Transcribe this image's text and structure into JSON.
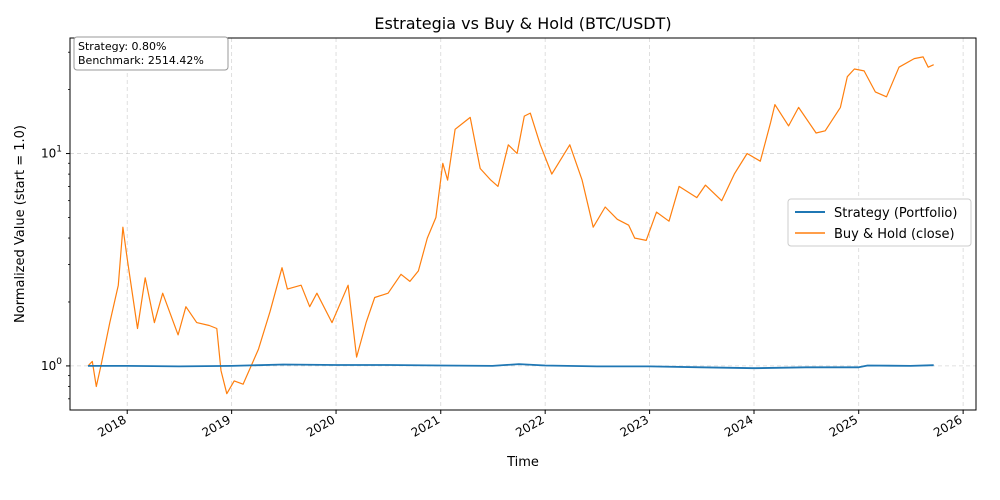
{
  "chart_data": {
    "type": "line",
    "title": "Estrategia vs Buy & Hold (BTC/USDT)",
    "xlabel": "Time",
    "ylabel": "Normalized Value (start = 1.0)",
    "y_scale": "log",
    "ylim": [
      0.62,
      35
    ],
    "xlim": [
      "2017-06-15",
      "2026-02-15"
    ],
    "x_ticks": [
      "2018",
      "2019",
      "2020",
      "2021",
      "2022",
      "2023",
      "2024",
      "2025",
      "2026"
    ],
    "y_ticks": [
      {
        "value": 1,
        "base": "10",
        "exp": "0"
      },
      {
        "value": 10,
        "base": "10",
        "exp": "1"
      }
    ],
    "grid": true,
    "legend_position": "center-right",
    "annotation": {
      "line1": "Strategy:  0.80%",
      "line2": "Benchmark:  2514.42%"
    },
    "series": [
      {
        "name": "Strategy (Portfolio)",
        "color": "#1f77b4",
        "points": [
          [
            "2017-08-17",
            1.0
          ],
          [
            "2018-01-01",
            1.0
          ],
          [
            "2018-07-01",
            0.995
          ],
          [
            "2019-01-01",
            1.0
          ],
          [
            "2019-07-01",
            1.015
          ],
          [
            "2020-01-01",
            1.01
          ],
          [
            "2020-07-01",
            1.01
          ],
          [
            "2021-01-01",
            1.005
          ],
          [
            "2021-07-01",
            1.0
          ],
          [
            "2021-10-01",
            1.02
          ],
          [
            "2022-01-01",
            1.005
          ],
          [
            "2022-07-01",
            0.995
          ],
          [
            "2023-01-01",
            0.995
          ],
          [
            "2023-07-01",
            0.985
          ],
          [
            "2024-01-01",
            0.975
          ],
          [
            "2024-07-01",
            0.985
          ],
          [
            "2025-01-01",
            0.985
          ],
          [
            "2025-02-01",
            1.005
          ],
          [
            "2025-07-01",
            1.0
          ],
          [
            "2025-09-20",
            1.008
          ]
        ]
      },
      {
        "name": "Buy & Hold (close)",
        "color": "#ff7f0e",
        "points": [
          [
            "2017-08-17",
            1.0
          ],
          [
            "2017-09-01",
            1.05
          ],
          [
            "2017-09-15",
            0.8
          ],
          [
            "2017-10-01",
            1.0
          ],
          [
            "2017-11-01",
            1.6
          ],
          [
            "2017-12-01",
            2.4
          ],
          [
            "2017-12-17",
            4.5
          ],
          [
            "2018-01-01",
            3.2
          ],
          [
            "2018-02-06",
            1.5
          ],
          [
            "2018-03-05",
            2.6
          ],
          [
            "2018-04-06",
            1.6
          ],
          [
            "2018-05-05",
            2.2
          ],
          [
            "2018-06-28",
            1.4
          ],
          [
            "2018-07-25",
            1.9
          ],
          [
            "2018-09-01",
            1.6
          ],
          [
            "2018-10-15",
            1.55
          ],
          [
            "2018-11-10",
            1.5
          ],
          [
            "2018-11-25",
            0.95
          ],
          [
            "2018-12-15",
            0.74
          ],
          [
            "2019-01-10",
            0.85
          ],
          [
            "2019-02-10",
            0.82
          ],
          [
            "2019-04-05",
            1.2
          ],
          [
            "2019-05-15",
            1.8
          ],
          [
            "2019-06-26",
            2.9
          ],
          [
            "2019-07-15",
            2.3
          ],
          [
            "2019-09-01",
            2.4
          ],
          [
            "2019-10-01",
            1.9
          ],
          [
            "2019-10-26",
            2.2
          ],
          [
            "2019-12-18",
            1.6
          ],
          [
            "2020-02-12",
            2.4
          ],
          [
            "2020-03-13",
            1.1
          ],
          [
            "2020-04-15",
            1.6
          ],
          [
            "2020-05-15",
            2.1
          ],
          [
            "2020-07-01",
            2.2
          ],
          [
            "2020-08-15",
            2.7
          ],
          [
            "2020-09-15",
            2.5
          ],
          [
            "2020-10-15",
            2.8
          ],
          [
            "2020-11-15",
            4.0
          ],
          [
            "2020-12-15",
            5.0
          ],
          [
            "2021-01-08",
            9.0
          ],
          [
            "2021-01-25",
            7.5
          ],
          [
            "2021-02-20",
            13.0
          ],
          [
            "2021-04-14",
            14.8
          ],
          [
            "2021-05-19",
            8.5
          ],
          [
            "2021-06-25",
            7.5
          ],
          [
            "2021-07-20",
            7.0
          ],
          [
            "2021-08-25",
            11.0
          ],
          [
            "2021-09-25",
            10.0
          ],
          [
            "2021-10-20",
            15.0
          ],
          [
            "2021-11-10",
            15.5
          ],
          [
            "2021-12-15",
            11.0
          ],
          [
            "2022-01-24",
            8.0
          ],
          [
            "2022-03-28",
            11.0
          ],
          [
            "2022-05-10",
            7.5
          ],
          [
            "2022-06-18",
            4.5
          ],
          [
            "2022-07-30",
            5.6
          ],
          [
            "2022-09-10",
            4.9
          ],
          [
            "2022-10-20",
            4.6
          ],
          [
            "2022-11-10",
            4.0
          ],
          [
            "2022-12-20",
            3.9
          ],
          [
            "2023-01-25",
            5.3
          ],
          [
            "2023-03-10",
            4.8
          ],
          [
            "2023-04-14",
            7.0
          ],
          [
            "2023-06-15",
            6.2
          ],
          [
            "2023-07-15",
            7.1
          ],
          [
            "2023-09-10",
            6.0
          ],
          [
            "2023-10-24",
            8.0
          ],
          [
            "2023-12-08",
            10.0
          ],
          [
            "2024-01-23",
            9.2
          ],
          [
            "2024-02-28",
            14.0
          ],
          [
            "2024-03-14",
            17.0
          ],
          [
            "2024-05-01",
            13.5
          ],
          [
            "2024-06-05",
            16.5
          ],
          [
            "2024-08-05",
            12.5
          ],
          [
            "2024-09-06",
            12.8
          ],
          [
            "2024-10-29",
            16.5
          ],
          [
            "2024-11-22",
            23.0
          ],
          [
            "2024-12-17",
            25.0
          ],
          [
            "2025-01-20",
            24.5
          ],
          [
            "2025-02-28",
            19.5
          ],
          [
            "2025-04-08",
            18.5
          ],
          [
            "2025-05-22",
            25.5
          ],
          [
            "2025-07-14",
            28.0
          ],
          [
            "2025-08-14",
            28.5
          ],
          [
            "2025-09-01",
            25.5
          ],
          [
            "2025-09-20",
            26.2
          ]
        ]
      }
    ]
  }
}
